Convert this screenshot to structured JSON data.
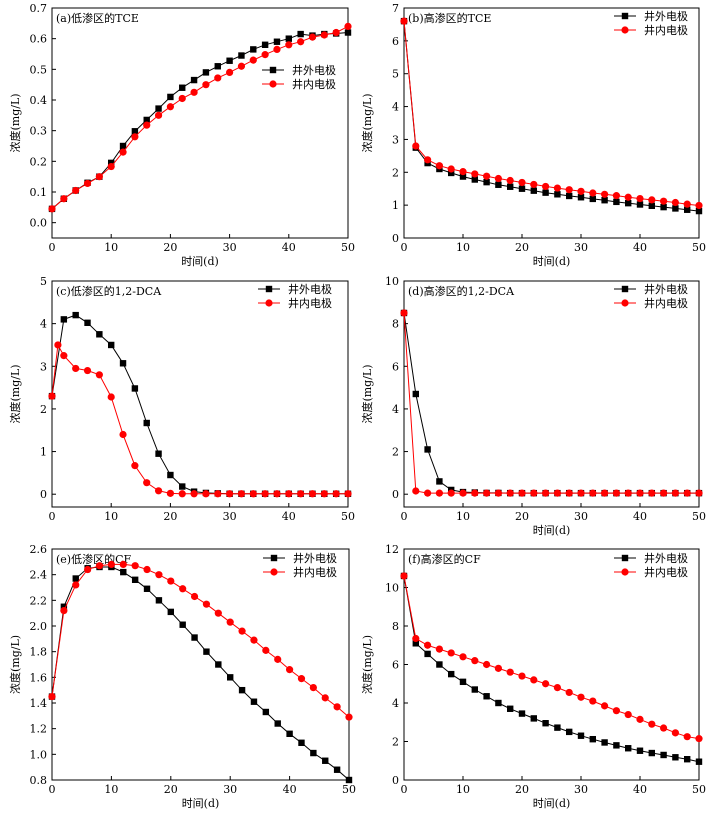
{
  "chart_data": [
    {
      "type": "line",
      "title": "(a)低渗区的TCE",
      "xlabel": "时间(d)",
      "ylabel": "浓度(mg/L)",
      "xlim": [
        0,
        50
      ],
      "ylim": [
        -0.05,
        0.7
      ],
      "xticks": [
        0,
        10,
        20,
        30,
        40,
        50
      ],
      "yticks": [
        0.0,
        0.1,
        0.2,
        0.3,
        0.4,
        0.5,
        0.6,
        0.7
      ],
      "yticklabels": [
        "0.0",
        "0.1",
        "0.2",
        "0.3",
        "0.4",
        "0.5",
        "0.6",
        "0.7"
      ],
      "legend_position": "right",
      "series": [
        {
          "name": "井外电极",
          "color": "#000000",
          "marker": "square",
          "x": [
            0,
            2,
            4,
            6,
            8,
            10,
            12,
            14,
            16,
            18,
            20,
            22,
            24,
            26,
            28,
            30,
            32,
            34,
            36,
            38,
            40,
            42,
            44,
            46,
            48,
            50
          ],
          "values": [
            0.045,
            0.078,
            0.105,
            0.13,
            0.15,
            0.195,
            0.25,
            0.298,
            0.335,
            0.372,
            0.41,
            0.44,
            0.465,
            0.49,
            0.51,
            0.528,
            0.545,
            0.565,
            0.58,
            0.59,
            0.6,
            0.615,
            0.61,
            0.615,
            0.617,
            0.62
          ]
        },
        {
          "name": "井内电极",
          "color": "#ff0000",
          "marker": "circle",
          "x": [
            0,
            2,
            4,
            6,
            8,
            10,
            12,
            14,
            16,
            18,
            20,
            22,
            24,
            26,
            28,
            30,
            32,
            34,
            36,
            38,
            40,
            42,
            44,
            46,
            48,
            50
          ],
          "values": [
            0.045,
            0.078,
            0.105,
            0.128,
            0.15,
            0.183,
            0.23,
            0.28,
            0.318,
            0.35,
            0.378,
            0.405,
            0.425,
            0.45,
            0.472,
            0.49,
            0.51,
            0.53,
            0.548,
            0.565,
            0.58,
            0.59,
            0.605,
            0.612,
            0.62,
            0.64
          ]
        }
      ]
    },
    {
      "type": "line",
      "title": "(b)高渗区的TCE",
      "xlabel": "时间(d)",
      "ylabel": "浓度(mg/L)",
      "xlim": [
        0,
        50
      ],
      "ylim": [
        0,
        7
      ],
      "xticks": [
        0,
        10,
        20,
        30,
        40,
        50
      ],
      "yticks": [
        0,
        1,
        2,
        3,
        4,
        5,
        6,
        7
      ],
      "yticklabels": [
        "0",
        "1",
        "2",
        "3",
        "4",
        "5",
        "6",
        "7"
      ],
      "legend_position": "top-right",
      "series": [
        {
          "name": "井外电极",
          "color": "#000000",
          "marker": "square",
          "x": [
            0,
            2,
            4,
            6,
            8,
            10,
            12,
            14,
            16,
            18,
            20,
            22,
            24,
            26,
            28,
            30,
            32,
            34,
            36,
            38,
            40,
            42,
            44,
            46,
            48,
            50
          ],
          "values": [
            6.6,
            2.75,
            2.28,
            2.1,
            1.98,
            1.87,
            1.78,
            1.7,
            1.62,
            1.56,
            1.5,
            1.44,
            1.38,
            1.33,
            1.28,
            1.24,
            1.19,
            1.15,
            1.1,
            1.06,
            1.02,
            0.98,
            0.94,
            0.9,
            0.86,
            0.82
          ]
        },
        {
          "name": "井内电极",
          "color": "#ff0000",
          "marker": "circle",
          "x": [
            0,
            2,
            4,
            6,
            8,
            10,
            12,
            14,
            16,
            18,
            20,
            22,
            24,
            26,
            28,
            30,
            32,
            34,
            36,
            38,
            40,
            42,
            44,
            46,
            48,
            50
          ],
          "values": [
            6.6,
            2.8,
            2.38,
            2.2,
            2.1,
            2.02,
            1.95,
            1.88,
            1.81,
            1.75,
            1.69,
            1.63,
            1.57,
            1.52,
            1.47,
            1.42,
            1.37,
            1.33,
            1.29,
            1.24,
            1.2,
            1.16,
            1.12,
            1.08,
            1.03,
            0.99
          ]
        }
      ]
    },
    {
      "type": "line",
      "title": "(c)低渗区的1,2-DCA",
      "xlabel": "",
      "ylabel": "浓度(mg/L)",
      "xlim": [
        0,
        50
      ],
      "ylim": [
        -0.3,
        5
      ],
      "xticks": [
        0,
        10,
        20,
        30,
        40,
        50
      ],
      "yticks": [
        0,
        1,
        2,
        3,
        4,
        5
      ],
      "yticklabels": [
        "0",
        "1",
        "2",
        "3",
        "4",
        "5"
      ],
      "legend_position": "top-right",
      "series": [
        {
          "name": "井外电极",
          "color": "#000000",
          "marker": "square",
          "x": [
            0,
            2,
            4,
            6,
            8,
            10,
            12,
            14,
            16,
            18,
            20,
            22,
            24,
            26,
            28,
            30,
            32,
            34,
            36,
            38,
            40,
            42,
            44,
            46,
            48,
            50
          ],
          "values": [
            2.3,
            4.1,
            4.2,
            4.02,
            3.75,
            3.5,
            3.07,
            2.48,
            1.67,
            0.95,
            0.45,
            0.18,
            0.06,
            0.03,
            0.02,
            0.01,
            0.01,
            0.01,
            0.01,
            0.01,
            0.01,
            0.01,
            0.01,
            0.01,
            0.01,
            0.01
          ]
        },
        {
          "name": "井内电极",
          "color": "#ff0000",
          "marker": "circle",
          "x": [
            0,
            1,
            2,
            4,
            6,
            8,
            10,
            12,
            14,
            16,
            18,
            20,
            22,
            24,
            26,
            28,
            30,
            32,
            34,
            36,
            38,
            40,
            42,
            44,
            46,
            48,
            50
          ],
          "values": [
            2.3,
            3.5,
            3.25,
            2.95,
            2.9,
            2.8,
            2.28,
            1.4,
            0.67,
            0.27,
            0.08,
            0.02,
            0.01,
            0.01,
            0.01,
            0.01,
            0.01,
            0.01,
            0.01,
            0.01,
            0.01,
            0.01,
            0.01,
            0.01,
            0.01,
            0.01,
            0.01
          ]
        }
      ]
    },
    {
      "type": "line",
      "title": "(d)高渗区的1,2-DCA",
      "xlabel": "时间(d)",
      "ylabel": "浓度(mg/L)",
      "xlim": [
        0,
        50
      ],
      "ylim": [
        -0.6,
        10
      ],
      "xticks": [
        0,
        10,
        20,
        30,
        40,
        50
      ],
      "yticks": [
        0,
        2,
        4,
        6,
        8,
        10
      ],
      "yticklabels": [
        "0",
        "2",
        "4",
        "6",
        "8",
        "10"
      ],
      "legend_position": "top-right",
      "series": [
        {
          "name": "井外电极",
          "color": "#000000",
          "marker": "square",
          "x": [
            0,
            2,
            4,
            6,
            8,
            10,
            12,
            14,
            16,
            18,
            20,
            22,
            24,
            26,
            28,
            30,
            32,
            34,
            36,
            38,
            40,
            42,
            44,
            46,
            48,
            50
          ],
          "values": [
            8.5,
            4.7,
            2.1,
            0.6,
            0.2,
            0.1,
            0.08,
            0.06,
            0.06,
            0.05,
            0.05,
            0.05,
            0.05,
            0.05,
            0.05,
            0.05,
            0.05,
            0.05,
            0.05,
            0.05,
            0.05,
            0.05,
            0.05,
            0.05,
            0.05,
            0.05
          ]
        },
        {
          "name": "井内电极",
          "color": "#ff0000",
          "marker": "circle",
          "x": [
            0,
            2,
            4,
            6,
            8,
            10,
            12,
            14,
            16,
            18,
            20,
            22,
            24,
            26,
            28,
            30,
            32,
            34,
            36,
            38,
            40,
            42,
            44,
            46,
            48,
            50
          ],
          "values": [
            8.5,
            0.15,
            0.05,
            0.05,
            0.05,
            0.05,
            0.05,
            0.05,
            0.05,
            0.05,
            0.05,
            0.05,
            0.05,
            0.05,
            0.05,
            0.05,
            0.05,
            0.05,
            0.05,
            0.05,
            0.05,
            0.05,
            0.05,
            0.05,
            0.05,
            0.05
          ]
        }
      ]
    },
    {
      "type": "line",
      "title": "(e)低渗区的CF",
      "xlabel": "时间(d)",
      "ylabel": "浓度(mg/L)",
      "xlim": [
        0,
        50
      ],
      "ylim": [
        0.8,
        2.6
      ],
      "xticks": [
        0,
        10,
        20,
        30,
        40,
        50
      ],
      "yticks": [
        0.8,
        1.0,
        1.2,
        1.4,
        1.6,
        1.8,
        2.0,
        2.2,
        2.4,
        2.6
      ],
      "yticklabels": [
        "0.8",
        "1.0",
        "1.2",
        "1.4",
        "1.6",
        "1.8",
        "2.0",
        "2.2",
        "2.4",
        "2.6"
      ],
      "legend_position": "top-right",
      "series": [
        {
          "name": "井外电极",
          "color": "#000000",
          "marker": "square",
          "x": [
            0,
            2,
            4,
            6,
            8,
            10,
            12,
            14,
            16,
            18,
            20,
            22,
            24,
            26,
            28,
            30,
            32,
            34,
            36,
            38,
            40,
            42,
            44,
            46,
            48,
            50
          ],
          "values": [
            1.45,
            2.15,
            2.37,
            2.45,
            2.46,
            2.46,
            2.42,
            2.36,
            2.29,
            2.2,
            2.11,
            2.01,
            1.91,
            1.8,
            1.7,
            1.6,
            1.5,
            1.41,
            1.33,
            1.24,
            1.16,
            1.09,
            1.01,
            0.95,
            0.88,
            0.8
          ]
        },
        {
          "name": "井内电极",
          "color": "#ff0000",
          "marker": "circle",
          "x": [
            0,
            2,
            4,
            6,
            8,
            10,
            12,
            14,
            16,
            18,
            20,
            22,
            24,
            26,
            28,
            30,
            32,
            34,
            36,
            38,
            40,
            42,
            44,
            46,
            48,
            50
          ],
          "values": [
            1.45,
            2.12,
            2.32,
            2.44,
            2.47,
            2.48,
            2.48,
            2.47,
            2.44,
            2.4,
            2.35,
            2.29,
            2.23,
            2.17,
            2.1,
            2.03,
            1.96,
            1.89,
            1.81,
            1.74,
            1.66,
            1.59,
            1.52,
            1.44,
            1.37,
            1.29
          ]
        }
      ]
    },
    {
      "type": "line",
      "title": "(f)高渗区的CF",
      "xlabel": "时间(d)",
      "ylabel": "浓度(mg/L)",
      "xlim": [
        0,
        50
      ],
      "ylim": [
        0,
        12
      ],
      "xticks": [
        0,
        10,
        20,
        30,
        40,
        50
      ],
      "yticks": [
        0,
        2,
        4,
        6,
        8,
        10,
        12
      ],
      "yticklabels": [
        "0",
        "2",
        "4",
        "6",
        "8",
        "10",
        "12"
      ],
      "legend_position": "top-right",
      "series": [
        {
          "name": "井外电极",
          "color": "#000000",
          "marker": "square",
          "x": [
            0,
            2,
            4,
            6,
            8,
            10,
            12,
            14,
            16,
            18,
            20,
            22,
            24,
            26,
            28,
            30,
            32,
            34,
            36,
            38,
            40,
            42,
            44,
            46,
            48,
            50
          ],
          "values": [
            10.6,
            7.1,
            6.55,
            6.0,
            5.5,
            5.1,
            4.7,
            4.35,
            4.0,
            3.7,
            3.45,
            3.2,
            2.95,
            2.72,
            2.5,
            2.3,
            2.12,
            1.95,
            1.8,
            1.65,
            1.52,
            1.4,
            1.3,
            1.18,
            1.08,
            0.95
          ]
        },
        {
          "name": "井内电极",
          "color": "#ff0000",
          "marker": "circle",
          "x": [
            0,
            2,
            4,
            6,
            8,
            10,
            12,
            14,
            16,
            18,
            20,
            22,
            24,
            26,
            28,
            30,
            32,
            34,
            36,
            38,
            40,
            42,
            44,
            46,
            48,
            50
          ],
          "values": [
            10.6,
            7.35,
            7.0,
            6.8,
            6.6,
            6.4,
            6.2,
            6.0,
            5.8,
            5.6,
            5.4,
            5.2,
            5.0,
            4.8,
            4.55,
            4.3,
            4.1,
            3.85,
            3.6,
            3.4,
            3.15,
            2.9,
            2.7,
            2.45,
            2.25,
            2.15
          ]
        }
      ]
    }
  ]
}
